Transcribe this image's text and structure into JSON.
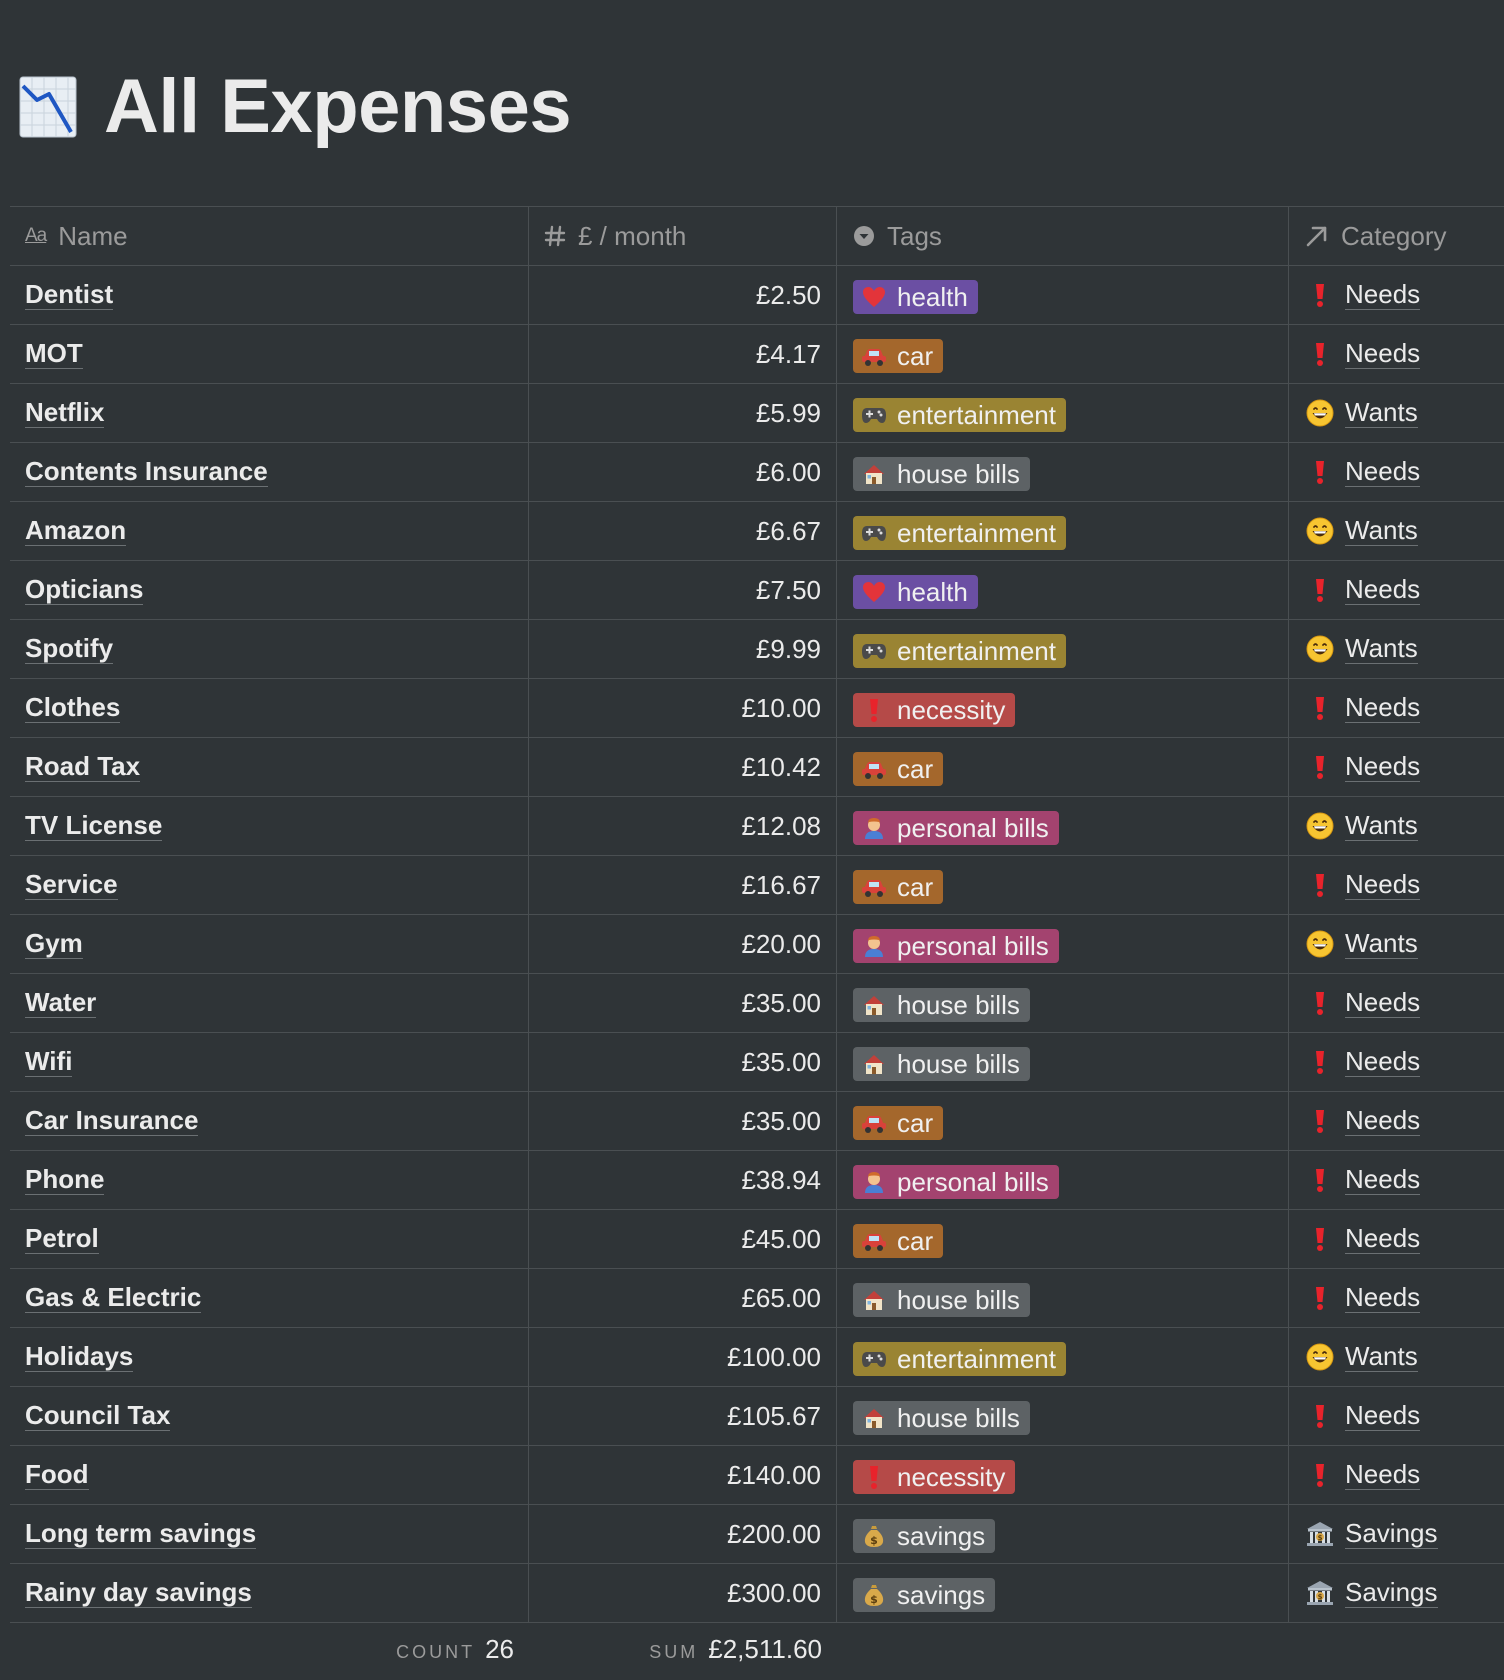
{
  "page": {
    "title": "All Expenses",
    "icon": "chart-decreasing-icon"
  },
  "columns": {
    "name": "Name",
    "price": "£ / month",
    "tags": "Tags",
    "category": "Category"
  },
  "tag_styles": {
    "health": {
      "bg": "#6b4fa3",
      "icon": "heart-icon"
    },
    "car": {
      "bg": "#a4672c",
      "icon": "car-icon"
    },
    "entertainment": {
      "bg": "#9a8433",
      "icon": "game-controller-icon"
    },
    "house bills": {
      "bg": "#5d6265",
      "icon": "house-icon"
    },
    "necessity": {
      "bg": "#b54a48",
      "icon": "exclamation-icon"
    },
    "personal bills": {
      "bg": "#a3436f",
      "icon": "person-icon"
    },
    "savings": {
      "bg": "#5d6265",
      "icon": "money-bag-icon"
    }
  },
  "category_styles": {
    "Needs": {
      "icon": "exclamation-icon"
    },
    "Wants": {
      "icon": "grinning-face-icon"
    },
    "Savings": {
      "icon": "bank-icon"
    }
  },
  "rows": [
    {
      "name": "Dentist",
      "price": "£2.50",
      "tag": "health",
      "category": "Needs"
    },
    {
      "name": "MOT",
      "price": "£4.17",
      "tag": "car",
      "category": "Needs"
    },
    {
      "name": "Netflix",
      "price": "£5.99",
      "tag": "entertainment",
      "category": "Wants"
    },
    {
      "name": "Contents Insurance",
      "price": "£6.00",
      "tag": "house bills",
      "category": "Needs"
    },
    {
      "name": "Amazon",
      "price": "£6.67",
      "tag": "entertainment",
      "category": "Wants"
    },
    {
      "name": "Opticians",
      "price": "£7.50",
      "tag": "health",
      "category": "Needs"
    },
    {
      "name": "Spotify",
      "price": "£9.99",
      "tag": "entertainment",
      "category": "Wants"
    },
    {
      "name": "Clothes",
      "price": "£10.00",
      "tag": "necessity",
      "category": "Needs"
    },
    {
      "name": "Road Tax",
      "price": "£10.42",
      "tag": "car",
      "category": "Needs"
    },
    {
      "name": "TV License",
      "price": "£12.08",
      "tag": "personal bills",
      "category": "Wants"
    },
    {
      "name": "Service",
      "price": "£16.67",
      "tag": "car",
      "category": "Needs"
    },
    {
      "name": "Gym",
      "price": "£20.00",
      "tag": "personal bills",
      "category": "Wants"
    },
    {
      "name": "Water",
      "price": "£35.00",
      "tag": "house bills",
      "category": "Needs"
    },
    {
      "name": "Wifi",
      "price": "£35.00",
      "tag": "house bills",
      "category": "Needs"
    },
    {
      "name": "Car Insurance",
      "price": "£35.00",
      "tag": "car",
      "category": "Needs"
    },
    {
      "name": "Phone",
      "price": "£38.94",
      "tag": "personal bills",
      "category": "Needs"
    },
    {
      "name": "Petrol",
      "price": "£45.00",
      "tag": "car",
      "category": "Needs"
    },
    {
      "name": "Gas & Electric",
      "price": "£65.00",
      "tag": "house bills",
      "category": "Needs"
    },
    {
      "name": "Holidays",
      "price": "£100.00",
      "tag": "entertainment",
      "category": "Wants"
    },
    {
      "name": "Council Tax",
      "price": "£105.67",
      "tag": "house bills",
      "category": "Needs"
    },
    {
      "name": "Food",
      "price": "£140.00",
      "tag": "necessity",
      "category": "Needs"
    },
    {
      "name": "Long term savings",
      "price": "£200.00",
      "tag": "savings",
      "category": "Savings"
    },
    {
      "name": "Rainy day savings",
      "price": "£300.00",
      "tag": "savings",
      "category": "Savings"
    }
  ],
  "footer": {
    "count_label": "COUNT",
    "count_value": "26",
    "sum_label": "SUM",
    "sum_value": "£2,511.60"
  }
}
